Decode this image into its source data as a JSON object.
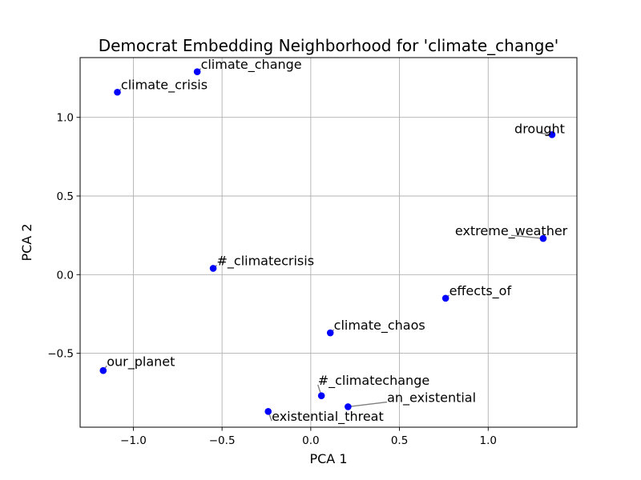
{
  "chart_data": {
    "type": "scatter",
    "title": "Democrat Embedding Neighborhood for 'climate_change'",
    "xlabel": "PCA 1",
    "ylabel": "PCA 2",
    "xlim": [
      -1.3,
      1.5
    ],
    "ylim": [
      -0.97,
      1.38
    ],
    "grid": true,
    "x_ticks": [
      -1.0,
      -0.5,
      0.0,
      0.5,
      1.0
    ],
    "x_tick_labels": [
      "−1.0",
      "−0.5",
      "0.0",
      "0.5",
      "1.0"
    ],
    "y_ticks": [
      -0.5,
      0.0,
      0.5,
      1.0
    ],
    "y_tick_labels": [
      "−0.5",
      "0.0",
      "0.5",
      "1.0"
    ],
    "marker_color": "#0000ff",
    "leader_color": "#808080",
    "points": [
      {
        "label": "climate_change",
        "x": -0.64,
        "y": 1.29,
        "label_x": -0.62,
        "label_y": 1.31,
        "anchor": "start"
      },
      {
        "label": "climate_crisis",
        "x": -1.09,
        "y": 1.16,
        "label_x": -1.07,
        "label_y": 1.18,
        "anchor": "start"
      },
      {
        "label": "drought",
        "x": 1.36,
        "y": 0.89,
        "label_x": 1.29,
        "label_y": 0.9,
        "anchor": "middle"
      },
      {
        "label": "extreme_weather",
        "x": 1.31,
        "y": 0.23,
        "label_x": 1.13,
        "label_y": 0.25,
        "anchor": "middle"
      },
      {
        "label": "#_climatecrisis",
        "x": -0.55,
        "y": 0.04,
        "label_x": -0.53,
        "label_y": 0.06,
        "anchor": "start"
      },
      {
        "label": "effects_of",
        "x": 0.76,
        "y": -0.15,
        "label_x": 0.78,
        "label_y": -0.13,
        "anchor": "start"
      },
      {
        "label": "climate_chaos",
        "x": 0.11,
        "y": -0.37,
        "label_x": 0.13,
        "label_y": -0.35,
        "anchor": "start"
      },
      {
        "label": "our_planet",
        "x": -1.17,
        "y": -0.61,
        "label_x": -1.15,
        "label_y": -0.58,
        "anchor": "start"
      },
      {
        "label": "#_climatechange",
        "x": 0.06,
        "y": -0.77,
        "label_x": 0.04,
        "label_y": -0.7,
        "anchor": "start"
      },
      {
        "label": "an_existential",
        "x": 0.21,
        "y": -0.84,
        "label_x": 0.43,
        "label_y": -0.81,
        "anchor": "start"
      },
      {
        "label": "existential_threat",
        "x": -0.24,
        "y": -0.87,
        "label_x": -0.22,
        "label_y": -0.93,
        "anchor": "start"
      }
    ]
  }
}
